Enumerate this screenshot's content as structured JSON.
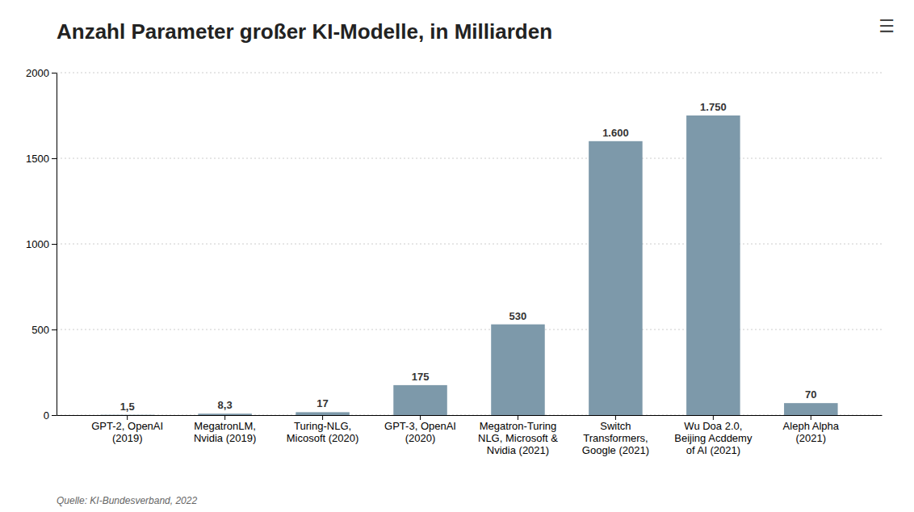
{
  "chart_data": {
    "type": "bar",
    "title": "Anzahl Parameter großer KI-Modelle, in Milliarden",
    "categories": [
      "GPT-2, OpenAI\n(2019)",
      "MegatronLM,\nNvidia (2019)",
      "Turing-NLG,\nMicosoft (2020)",
      "GPT-3, OpenAI\n(2020)",
      "Megatron-Turing\nNLG, Microsoft &\nNvidia (2021)",
      "Switch\nTransformers,\nGoogle (2021)",
      "Wu Doa 2.0,\nBeijing Acddemy\nof AI (2021)",
      "Aleph Alpha\n(2021)"
    ],
    "values": [
      1.5,
      8.3,
      17,
      175,
      530,
      1600,
      1750,
      70
    ],
    "value_labels": [
      "1,5",
      "8,3",
      "17",
      "175",
      "530",
      "1.600",
      "1.750",
      "70"
    ],
    "data_labels": true,
    "color": "#7d99aa",
    "ylim": [
      0,
      2000
    ],
    "yticks": [
      0,
      500,
      1000,
      1500,
      2000
    ],
    "grid": true,
    "annotations": [
      "Quelle: KI-Bundesverband, 2022",
      "☰"
    ]
  }
}
